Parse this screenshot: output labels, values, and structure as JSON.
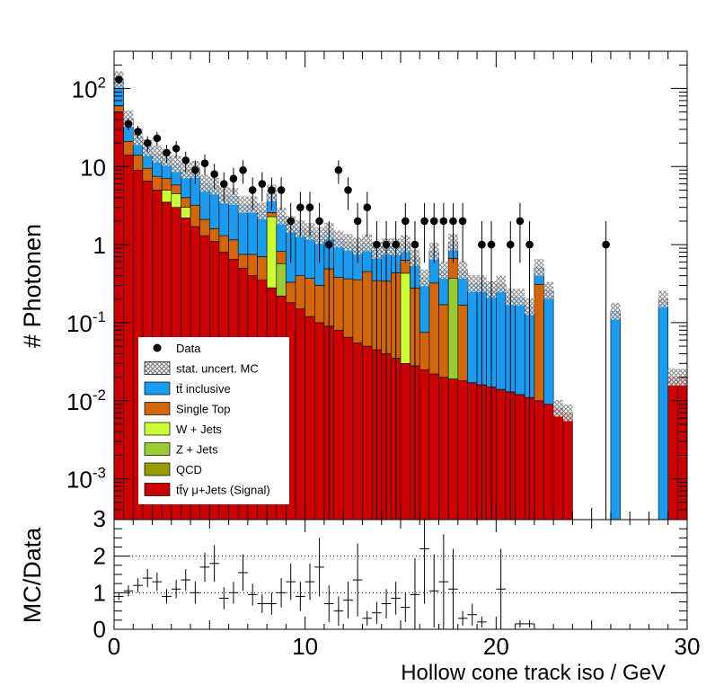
{
  "chart_data": [
    {
      "type": "bar",
      "subtype": "stacked-histogram-log",
      "xlabel": "Hollow cone track iso / GeV",
      "ylabel": "# Photonen",
      "xlim": [
        0,
        30
      ],
      "ylim": [
        0.0003,
        300
      ],
      "yscale": "log",
      "bin_width": 0.5,
      "bin_edges_start": 0,
      "ytick_labels": [
        {
          "value": 0.001,
          "base": "10",
          "exp": "-3"
        },
        {
          "value": 0.01,
          "base": "10",
          "exp": "-2"
        },
        {
          "value": 0.1,
          "base": "10",
          "exp": "-1"
        },
        {
          "value": 1,
          "base": "1",
          "exp": ""
        },
        {
          "value": 10,
          "base": "10",
          "exp": ""
        },
        {
          "value": 100,
          "base": "10",
          "exp": "2"
        }
      ],
      "legend_position": "bottom-left",
      "legend": [
        {
          "label": "Data",
          "kind": "marker",
          "color": "#000000"
        },
        {
          "label": "stat. uncert. MC",
          "kind": "hatch",
          "color": "#808080"
        },
        {
          "label": "tt̄ inclusive",
          "kind": "box",
          "color": "#1a9bf0"
        },
        {
          "label": "Single Top",
          "kind": "box",
          "color": "#d2660a"
        },
        {
          "label": "W + Jets",
          "kind": "box",
          "color": "#ccff33"
        },
        {
          "label": "Z + Jets",
          "kind": "box",
          "color": "#99cc33"
        },
        {
          "label": "QCD",
          "kind": "box",
          "color": "#999900"
        },
        {
          "label": "tt̄γ μ+Jets (Signal)",
          "kind": "box",
          "color": "#cc0000"
        }
      ],
      "series": [
        {
          "name": "tt̄γ μ+Jets (Signal)",
          "color": "#cc0000",
          "values": [
            50,
            14,
            9,
            6.5,
            5,
            3.5,
            3,
            2.2,
            1.7,
            1.3,
            1.1,
            0.8,
            0.65,
            0.5,
            0.4,
            0.35,
            0.28,
            0.22,
            0.18,
            0.15,
            0.12,
            0.1,
            0.09,
            0.08,
            0.065,
            0.055,
            0.05,
            0.045,
            0.04,
            0.035,
            0.03,
            0.028,
            0.025,
            0.022,
            0.02,
            0.019,
            0.018,
            0.017,
            0.016,
            0.015,
            0.014,
            0.013,
            0.012,
            0.011,
            0.01,
            0.009,
            0.008,
            0.007,
            0,
            0,
            0,
            0,
            0,
            0,
            0,
            0,
            0,
            0,
            0.02,
            0.02
          ]
        },
        {
          "name": "QCD",
          "color": "#999900",
          "values": [
            0,
            0,
            0,
            0,
            0,
            0,
            0,
            0,
            0,
            0,
            0,
            0,
            0,
            0,
            0,
            0,
            0,
            0,
            0,
            0,
            0,
            0,
            0,
            0,
            0,
            0,
            0,
            0,
            0,
            0,
            0,
            0,
            0,
            0,
            0,
            0,
            0,
            0,
            0,
            0,
            0,
            0,
            0,
            0,
            0,
            0,
            0,
            0,
            0,
            0,
            0,
            0,
            0,
            0,
            0,
            0,
            0,
            0,
            0,
            0
          ]
        },
        {
          "name": "Z + Jets",
          "color": "#99cc33",
          "values": [
            0,
            0,
            0,
            0,
            0,
            0,
            0,
            0,
            0,
            0,
            0,
            0,
            0,
            0,
            0,
            0,
            0,
            0.35,
            0,
            0,
            0,
            0,
            0,
            0,
            0,
            0,
            0,
            0,
            0,
            0,
            0,
            0,
            0,
            0,
            0,
            0.35,
            0,
            0,
            0,
            0,
            0,
            0,
            0,
            0,
            0,
            0,
            0,
            0,
            0,
            0,
            0,
            0,
            0,
            0,
            0,
            0,
            0,
            0,
            0,
            0
          ]
        },
        {
          "name": "W + Jets",
          "color": "#ccff33",
          "values": [
            0,
            0,
            0,
            0,
            0,
            1.5,
            1.5,
            0.8,
            0,
            0,
            0,
            0,
            0,
            0,
            0,
            0,
            2,
            0,
            0,
            0,
            0,
            0,
            0,
            0,
            0,
            0,
            0,
            0,
            0,
            0,
            0.4,
            0,
            0,
            0,
            0,
            0,
            0,
            0,
            0,
            0,
            0,
            0,
            0,
            0,
            0,
            0,
            0,
            0,
            0,
            0,
            0,
            0,
            0,
            0,
            0,
            0,
            0,
            0,
            0,
            0
          ]
        },
        {
          "name": "Single Top",
          "color": "#d2660a",
          "values": [
            10,
            7,
            5,
            3,
            2.5,
            2,
            1.3,
            1,
            1.5,
            0.8,
            0.5,
            0.5,
            0.5,
            0.25,
            0.35,
            0.35,
            0.3,
            0.25,
            0.15,
            0.25,
            0.25,
            0.2,
            0.4,
            0.3,
            0.3,
            0.3,
            0.4,
            0.3,
            0.3,
            0.4,
            0.2,
            0.25,
            0.05,
            0.3,
            0.15,
            0.3,
            0.15,
            0,
            0,
            0,
            0,
            0,
            0,
            0,
            0.3,
            0,
            0,
            0,
            0,
            0,
            0,
            0,
            0,
            0,
            0,
            0,
            0,
            0,
            0,
            0
          ]
        },
        {
          "name": "tt̄ inclusive",
          "color": "#1a9bf0",
          "values": [
            70,
            20,
            10,
            8,
            7,
            6,
            5,
            5,
            6,
            4,
            4,
            3,
            3,
            2.5,
            2.5,
            2,
            2,
            1.5,
            1.5,
            1.2,
            1.1,
            1,
            1,
            0.8,
            0.7,
            0.6,
            0.6,
            0.5,
            0.6,
            0.5,
            0.4,
            0.4,
            0.3,
            0.5,
            0.3,
            0.4,
            0.3,
            0.3,
            0.3,
            0.25,
            0.3,
            0.2,
            0.2,
            0.15,
            0.2,
            0.25,
            0,
            0,
            0,
            0,
            0,
            0,
            0.14,
            0,
            0,
            0,
            0,
            0.2,
            0,
            0
          ]
        }
      ],
      "data_points": [
        {
          "x": 0.25,
          "y": 130
        },
        {
          "x": 0.75,
          "y": 35
        },
        {
          "x": 1.25,
          "y": 28
        },
        {
          "x": 1.75,
          "y": 20
        },
        {
          "x": 2.25,
          "y": 23
        },
        {
          "x": 2.75,
          "y": 15
        },
        {
          "x": 3.25,
          "y": 17
        },
        {
          "x": 3.75,
          "y": 12
        },
        {
          "x": 4.25,
          "y": 9
        },
        {
          "x": 4.75,
          "y": 11
        },
        {
          "x": 5.25,
          "y": 8
        },
        {
          "x": 5.75,
          "y": 6
        },
        {
          "x": 6.25,
          "y": 7
        },
        {
          "x": 6.75,
          "y": 9
        },
        {
          "x": 7.25,
          "y": 5
        },
        {
          "x": 7.75,
          "y": 6
        },
        {
          "x": 8.25,
          "y": 5
        },
        {
          "x": 8.75,
          "y": 5
        },
        {
          "x": 9.25,
          "y": 2
        },
        {
          "x": 9.75,
          "y": 3
        },
        {
          "x": 10.25,
          "y": 3
        },
        {
          "x": 10.75,
          "y": 2
        },
        {
          "x": 11.25,
          "y": 1
        },
        {
          "x": 11.75,
          "y": 9
        },
        {
          "x": 12.25,
          "y": 5
        },
        {
          "x": 12.75,
          "y": 2
        },
        {
          "x": 13.25,
          "y": 3
        },
        {
          "x": 13.75,
          "y": 1
        },
        {
          "x": 14.25,
          "y": 1
        },
        {
          "x": 14.75,
          "y": 1
        },
        {
          "x": 15.25,
          "y": 2
        },
        {
          "x": 15.75,
          "y": 1
        },
        {
          "x": 16.25,
          "y": 2
        },
        {
          "x": 16.75,
          "y": 2
        },
        {
          "x": 17.25,
          "y": 2
        },
        {
          "x": 17.75,
          "y": 2
        },
        {
          "x": 18.25,
          "y": 2
        },
        {
          "x": 19.25,
          "y": 1
        },
        {
          "x": 19.75,
          "y": 1
        },
        {
          "x": 20.75,
          "y": 1
        },
        {
          "x": 21.25,
          "y": 2
        },
        {
          "x": 21.75,
          "y": 1
        },
        {
          "x": 25.75,
          "y": 1
        }
      ]
    },
    {
      "type": "scatter",
      "subtype": "ratio",
      "ylabel": "MC/Data",
      "xlim": [
        0,
        30
      ],
      "ylim": [
        0,
        3
      ],
      "xticks": [
        0,
        10,
        20,
        30
      ],
      "yticks": [
        0,
        1,
        2,
        3
      ],
      "reference_lines": [
        1,
        2
      ],
      "points": [
        {
          "x": 0.25,
          "y": 0.9,
          "err": 0.1
        },
        {
          "x": 0.75,
          "y": 1.05,
          "err": 0.15
        },
        {
          "x": 1.25,
          "y": 1.2,
          "err": 0.2
        },
        {
          "x": 1.75,
          "y": 1.4,
          "err": 0.25
        },
        {
          "x": 2.25,
          "y": 1.3,
          "err": 0.25
        },
        {
          "x": 2.75,
          "y": 0.9,
          "err": 0.2
        },
        {
          "x": 3.25,
          "y": 1.1,
          "err": 0.25
        },
        {
          "x": 3.75,
          "y": 1.35,
          "err": 0.3
        },
        {
          "x": 4.25,
          "y": 1.0,
          "err": 0.3
        },
        {
          "x": 4.75,
          "y": 1.7,
          "err": 0.4
        },
        {
          "x": 5.25,
          "y": 1.8,
          "err": 0.5
        },
        {
          "x": 5.75,
          "y": 0.85,
          "err": 0.3
        },
        {
          "x": 6.25,
          "y": 1.0,
          "err": 0.3
        },
        {
          "x": 6.75,
          "y": 1.55,
          "err": 0.5
        },
        {
          "x": 7.25,
          "y": 0.95,
          "err": 0.3
        },
        {
          "x": 7.75,
          "y": 0.7,
          "err": 0.25
        },
        {
          "x": 8.25,
          "y": 0.7,
          "err": 0.3
        },
        {
          "x": 8.75,
          "y": 1.0,
          "err": 0.4
        },
        {
          "x": 9.25,
          "y": 1.3,
          "err": 0.5
        },
        {
          "x": 9.75,
          "y": 0.9,
          "err": 0.4
        },
        {
          "x": 10.25,
          "y": 1.3,
          "err": 0.5
        },
        {
          "x": 10.75,
          "y": 1.7,
          "err": 0.8
        },
        {
          "x": 11.25,
          "y": 0.7,
          "err": 0.5
        },
        {
          "x": 11.75,
          "y": 0.5,
          "err": 0.4
        },
        {
          "x": 12.25,
          "y": 0.8,
          "err": 0.5
        },
        {
          "x": 12.75,
          "y": 1.35,
          "err": 1.0
        },
        {
          "x": 13.25,
          "y": 0.3,
          "err": 0.2
        },
        {
          "x": 13.75,
          "y": 0.45,
          "err": 0.3
        },
        {
          "x": 14.25,
          "y": 0.7,
          "err": 0.4
        },
        {
          "x": 14.75,
          "y": 0.85,
          "err": 0.45
        },
        {
          "x": 15.25,
          "y": 0.6,
          "err": 0.4
        },
        {
          "x": 15.75,
          "y": 0.95,
          "err": 1.0
        },
        {
          "x": 16.25,
          "y": 2.2,
          "err": 1.5
        },
        {
          "x": 16.75,
          "y": 1.05,
          "err": 1.0
        },
        {
          "x": 17.25,
          "y": 1.3,
          "err": 1.3
        },
        {
          "x": 17.75,
          "y": 1.1,
          "err": 1.1
        },
        {
          "x": 18.25,
          "y": 0.3,
          "err": 0.2
        },
        {
          "x": 18.75,
          "y": 0.4,
          "err": 0.3
        },
        {
          "x": 19.25,
          "y": 0.2,
          "err": 0.15
        },
        {
          "x": 20.25,
          "y": 1.1,
          "err": 1.1
        },
        {
          "x": 21.25,
          "y": 0.15,
          "err": 0.1
        },
        {
          "x": 21.75,
          "y": 0.15,
          "err": 0.1
        }
      ]
    }
  ]
}
